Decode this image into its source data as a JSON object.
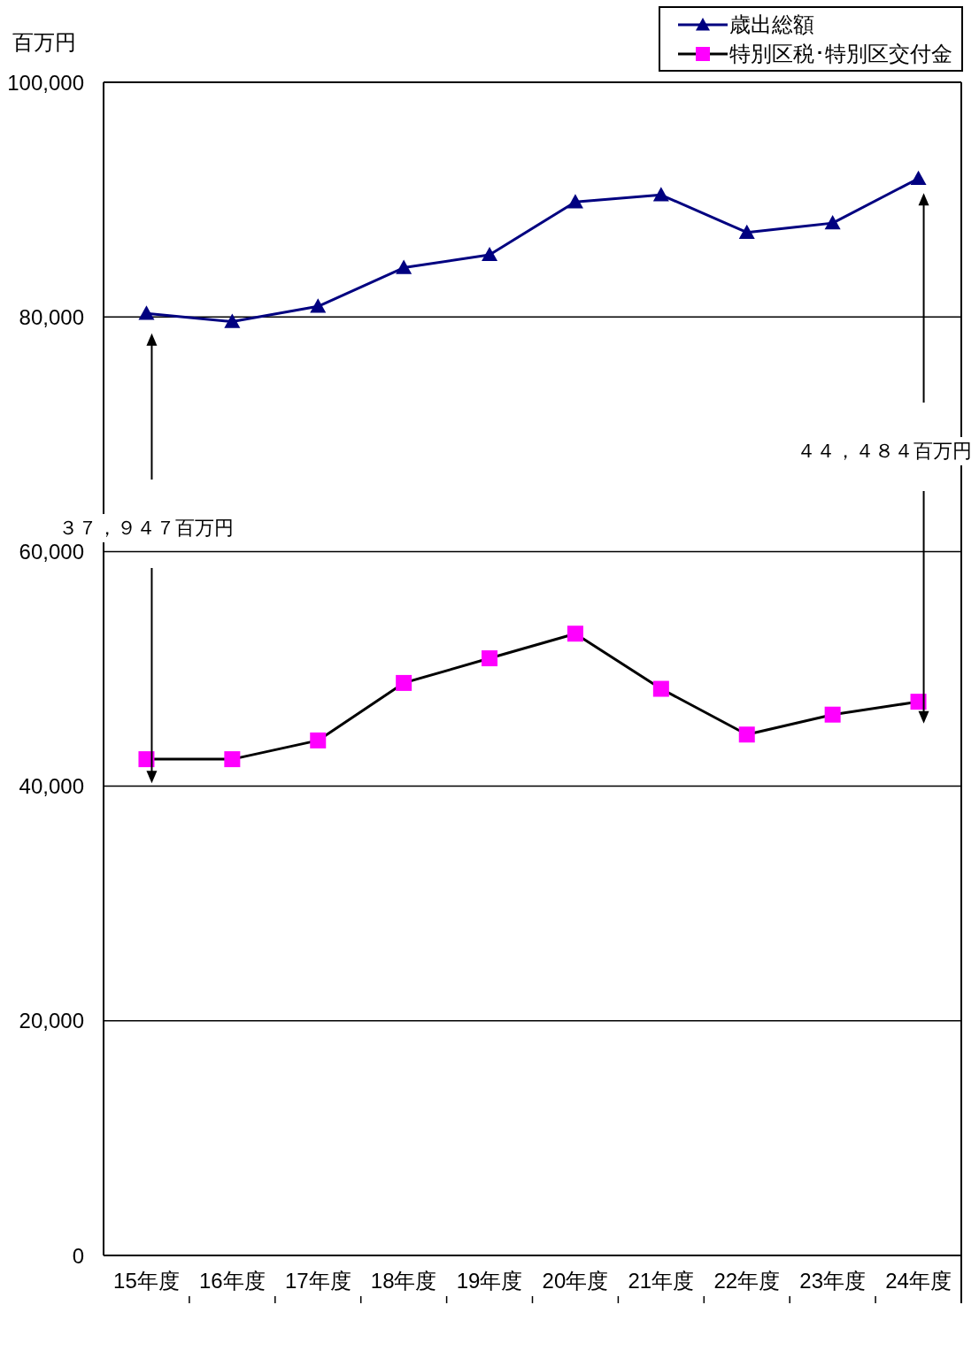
{
  "chart_data": {
    "type": "line",
    "ylabel": "百万円",
    "categories": [
      "15年度",
      "16年度",
      "17年度",
      "18年度",
      "19年度",
      "20年度",
      "21年度",
      "22年度",
      "23年度",
      "24年度"
    ],
    "series": [
      {
        "name": "歳出総額",
        "color": "#000080",
        "marker": "triangle",
        "values": [
          80300,
          79600,
          80900,
          84200,
          85300,
          89800,
          90400,
          87200,
          88000,
          91800
        ]
      },
      {
        "name": "特別区税･特別区交付金",
        "color": "#000000",
        "colors": [
          "#ff00ff",
          "#ff00ff",
          "#ff00ff",
          "#ff00ff",
          "#ff00ff",
          "#ff00ff",
          "#ff00ff",
          "#ff00ff",
          "#ff00ff",
          "#ff00ff"
        ],
        "marker": "square",
        "values": [
          42300,
          42300,
          43900,
          48800,
          50900,
          53000,
          48300,
          44400,
          46100,
          47200
        ]
      }
    ],
    "ylim": [
      0,
      100000
    ],
    "yticks": [
      0,
      {
        "value": 20000,
        "label": "20,000"
      },
      {
        "value": 40000,
        "label": "40,000"
      },
      {
        "value": 60000,
        "label": "60,000"
      },
      {
        "value": 80000,
        "label": "80,000"
      },
      {
        "value": 100000,
        "label": "100,000"
      }
    ],
    "grid": "y",
    "legend": "top right",
    "annotations": [
      "３７，９４７百万円",
      "４４，４８４百万円"
    ]
  }
}
